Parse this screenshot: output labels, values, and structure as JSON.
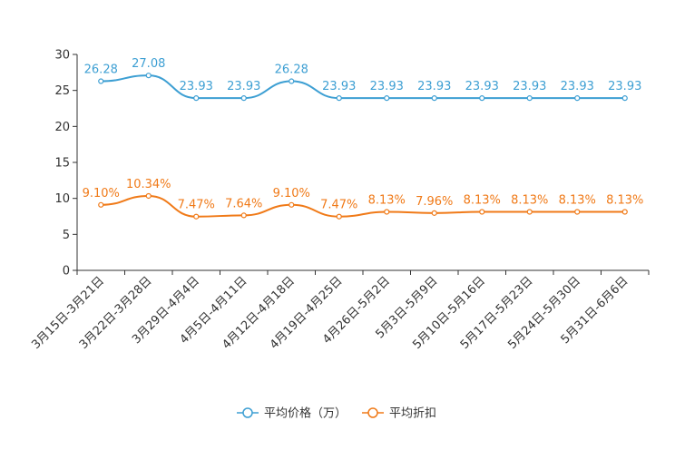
{
  "chart_data": {
    "type": "line",
    "title": "",
    "xlabel": "",
    "ylabel": "",
    "ylim": [
      0,
      30
    ],
    "yticks": [
      0,
      5,
      10,
      15,
      20,
      25,
      30
    ],
    "grid": false,
    "legend_position": "bottom-center",
    "categories": [
      "3月15日-3月21日",
      "3月22日-3月28日",
      "3月29日-4月4日",
      "4月5日-4月11日",
      "4月12日-4月18日",
      "4月19日-4月25日",
      "4月26日-5月2日",
      "5月3日-5月9日",
      "5月10日-5月16日",
      "5月17日-5月23日",
      "5月24日-5月30日",
      "5月31日-6月6日"
    ],
    "series": [
      {
        "name": "平均价格（万）",
        "color": "#3d9fd3",
        "values": [
          26.28,
          27.08,
          23.93,
          23.93,
          26.28,
          23.93,
          23.93,
          23.93,
          23.93,
          23.93,
          23.93,
          23.93
        ],
        "labels": [
          "26.28",
          "27.08",
          "23.93",
          "23.93",
          "26.28",
          "23.93",
          "23.93",
          "23.93",
          "23.93",
          "23.93",
          "23.93",
          "23.93"
        ]
      },
      {
        "name": "平均折扣",
        "color": "#f07a18",
        "values": [
          9.1,
          10.34,
          7.47,
          7.64,
          9.1,
          7.47,
          8.13,
          7.96,
          8.13,
          8.13,
          8.13,
          8.13
        ],
        "labels": [
          "9.10%",
          "10.34%",
          "7.47%",
          "7.64%",
          "9.10%",
          "7.47%",
          "8.13%",
          "7.96%",
          "8.13%",
          "8.13%",
          "8.13%",
          "8.13%"
        ]
      }
    ]
  }
}
